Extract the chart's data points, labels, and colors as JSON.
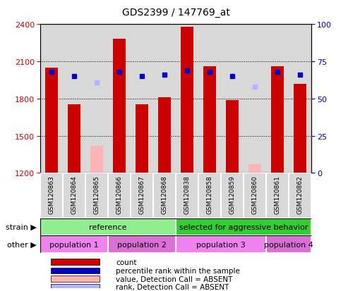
{
  "title": "GDS2399 / 147769_at",
  "samples": [
    "GSM120863",
    "GSM120864",
    "GSM120865",
    "GSM120866",
    "GSM120867",
    "GSM120868",
    "GSM120838",
    "GSM120858",
    "GSM120859",
    "GSM120860",
    "GSM120861",
    "GSM120862"
  ],
  "count_values": [
    2050,
    1755,
    null,
    2280,
    1755,
    1810,
    2380,
    2060,
    1790,
    null,
    2060,
    1920
  ],
  "absent_count_values": [
    null,
    null,
    1420,
    null,
    null,
    null,
    null,
    null,
    null,
    1270,
    null,
    null
  ],
  "percentile_rank": [
    68,
    65,
    null,
    68,
    65,
    66,
    69,
    68,
    65,
    null,
    68,
    66
  ],
  "absent_rank": [
    null,
    null,
    61,
    null,
    null,
    null,
    null,
    null,
    null,
    58,
    null,
    null
  ],
  "ylim_left": [
    1200,
    2400
  ],
  "ylim_right": [
    0,
    100
  ],
  "yticks_left": [
    1200,
    1500,
    1800,
    2100,
    2400
  ],
  "yticks_right": [
    0,
    25,
    50,
    75,
    100
  ],
  "bar_color_present": "#cc0000",
  "bar_color_absent": "#ffb3b3",
  "dot_color_present": "#0000cc",
  "dot_color_absent": "#b3b3ff",
  "bar_width": 0.55,
  "strain_groups": [
    {
      "label": "reference",
      "start": 0,
      "end": 6,
      "color": "#90ee90"
    },
    {
      "label": "selected for aggressive behavior",
      "start": 6,
      "end": 12,
      "color": "#32cd32"
    }
  ],
  "population_groups": [
    {
      "label": "population 1",
      "start": 0,
      "end": 3,
      "color": "#ee82ee"
    },
    {
      "label": "population 2",
      "start": 3,
      "end": 6,
      "color": "#da70d6"
    },
    {
      "label": "population 3",
      "start": 6,
      "end": 10,
      "color": "#ee82ee"
    },
    {
      "label": "population 4",
      "start": 10,
      "end": 12,
      "color": "#da70d6"
    }
  ],
  "legend_items": [
    {
      "label": "count",
      "color": "#cc0000"
    },
    {
      "label": "percentile rank within the sample",
      "color": "#0000cc"
    },
    {
      "label": "value, Detection Call = ABSENT",
      "color": "#ffb3b3"
    },
    {
      "label": "rank, Detection Call = ABSENT",
      "color": "#b3b3ff"
    }
  ],
  "left_axis_color": "#cc0000",
  "right_axis_color": "#0000cc",
  "plot_bg_color": "#d8d8d8",
  "cell_bg_color": "#d8d8d8",
  "fig_bg_color": "#ffffff"
}
